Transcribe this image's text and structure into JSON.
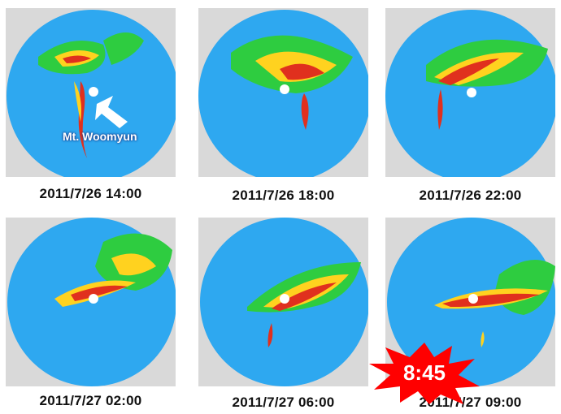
{
  "panels": [
    {
      "caption": "2011/7/26 14:00"
    },
    {
      "caption": "2011/7/26 18:00"
    },
    {
      "caption": "2011/7/26 22:00"
    },
    {
      "caption": "2011/7/27 02:00"
    },
    {
      "caption": "2011/7/27 06:00"
    },
    {
      "caption": "2011/7/27 09:00"
    }
  ],
  "annotation": {
    "label": "Mt. Woomyun"
  },
  "highlight": {
    "time": "8:45",
    "color": "#ff0000"
  },
  "colors": {
    "radar_disc": "#2ea8f0",
    "outside": "#d9d9d9",
    "echo_green": "#2ecc40",
    "echo_yellow": "#ffd21f",
    "echo_red": "#e0301e"
  }
}
